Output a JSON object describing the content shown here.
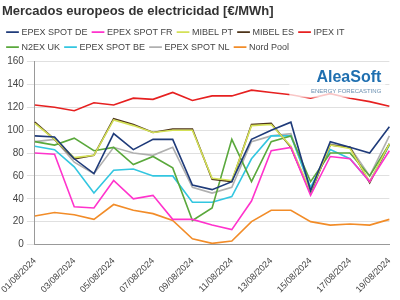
{
  "chart_data": {
    "type": "line",
    "title": "Mercados europeos de electricidad [€/MWh]",
    "annotations": [
      "AleaSoft",
      "ENERGY FORECASTING"
    ],
    "categories": [
      "01/08/2024",
      null,
      "03/08/2024",
      null,
      "05/08/2024",
      null,
      "07/08/2024",
      null,
      "09/08/2024",
      null,
      "11/08/2024",
      null,
      "13/08/2024",
      null,
      "15/08/2024",
      null,
      "17/08/2024",
      null,
      "19/08/2024"
    ],
    "series": [
      {
        "name": "EPEX SPOT DE",
        "color": "#1f3b7a",
        "values": [
          95,
          94,
          75,
          62,
          97,
          83,
          92,
          92,
          52,
          48,
          55,
          92,
          100,
          107,
          47,
          90,
          85,
          80,
          103
        ]
      },
      {
        "name": "EPEX SPOT FR",
        "color": "#ff33cc",
        "values": [
          80,
          79,
          33,
          32,
          56,
          40,
          43,
          22,
          22,
          17,
          13,
          38,
          82,
          85,
          43,
          77,
          75,
          55,
          82
        ]
      },
      {
        "name": "MIBEL PT",
        "color": "#d4e157",
        "values": [
          106,
          92,
          76,
          78,
          109,
          104,
          98,
          100,
          100,
          58,
          56,
          104,
          105,
          86,
          46,
          87,
          84,
          55,
          88
        ]
      },
      {
        "name": "MIBEL ES",
        "color": "#4d3319",
        "values": [
          107,
          92,
          75,
          78,
          110,
          105,
          98,
          101,
          101,
          57,
          55,
          105,
          106,
          85,
          45,
          87,
          85,
          54,
          88
        ]
      },
      {
        "name": "IPEX IT",
        "color": "#e62020",
        "values": [
          122,
          120,
          117,
          124,
          122,
          128,
          127,
          133,
          126,
          130,
          130,
          135,
          133,
          131,
          128,
          132,
          128,
          125,
          121
        ]
      },
      {
        "name": "N2EX UK",
        "color": "#5aa83c",
        "values": [
          90,
          87,
          93,
          82,
          85,
          70,
          77,
          67,
          21,
          32,
          92,
          55,
          90,
          95,
          55,
          80,
          80,
          60,
          88
        ]
      },
      {
        "name": "EPEX SPOT BE",
        "color": "#33c6e0",
        "values": [
          86,
          83,
          68,
          45,
          65,
          66,
          60,
          60,
          37,
          37,
          42,
          75,
          95,
          95,
          50,
          83,
          75,
          55,
          87
        ]
      },
      {
        "name": "EPEX SPOT NL",
        "color": "#b0b0b0",
        "values": [
          90,
          92,
          72,
          62,
          85,
          80,
          78,
          85,
          50,
          45,
          50,
          90,
          95,
          97,
          48,
          88,
          85,
          60,
          95
        ]
      },
      {
        "name": "Nord Pool",
        "color": "#f28c28",
        "values": [
          25,
          28,
          26,
          22,
          35,
          30,
          27,
          21,
          5,
          1,
          3,
          20,
          30,
          30,
          20,
          17,
          18,
          17,
          22
        ]
      }
    ],
    "ylim": [
      0,
      160
    ],
    "yticks": [
      0,
      20,
      40,
      60,
      80,
      100,
      120,
      140,
      160
    ],
    "grid": true,
    "legend": "top"
  }
}
